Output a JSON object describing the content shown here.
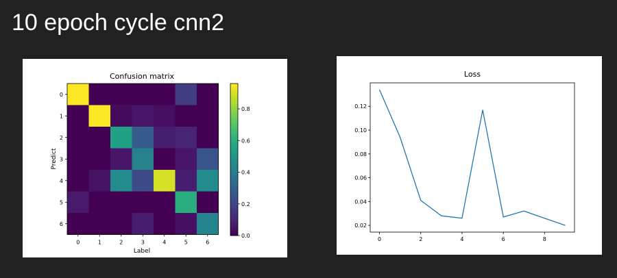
{
  "slide": {
    "title": "10 epoch cycle cnn2"
  },
  "chart_data": [
    {
      "type": "heatmap",
      "title": "Confusion matrix",
      "xlabel": "Label",
      "ylabel": "Predict",
      "x_categories": [
        "0",
        "1",
        "2",
        "3",
        "4",
        "5",
        "6"
      ],
      "y_categories": [
        "0",
        "1",
        "2",
        "3",
        "4",
        "5",
        "6"
      ],
      "values": [
        [
          0.96,
          0.0,
          0.0,
          0.0,
          0.0,
          0.17,
          0.0
        ],
        [
          0.0,
          0.96,
          0.03,
          0.06,
          0.04,
          0.0,
          0.0
        ],
        [
          0.0,
          0.0,
          0.55,
          0.28,
          0.08,
          0.1,
          0.0
        ],
        [
          0.0,
          0.0,
          0.06,
          0.42,
          0.0,
          0.06,
          0.25
        ],
        [
          0.0,
          0.05,
          0.46,
          0.22,
          0.9,
          0.08,
          0.46
        ],
        [
          0.07,
          0.0,
          0.0,
          0.0,
          0.0,
          0.6,
          0.0
        ],
        [
          0.0,
          0.0,
          0.0,
          0.08,
          0.0,
          0.04,
          0.43
        ]
      ],
      "colorbar": {
        "min": 0.0,
        "max": 0.96,
        "ticks": [
          "0.0",
          "0.2",
          "0.4",
          "0.6",
          "0.8"
        ],
        "colormap": "viridis"
      }
    },
    {
      "type": "line",
      "title": "Loss",
      "xlabel": "",
      "ylabel": "",
      "x": [
        0,
        1,
        2,
        3,
        4,
        5,
        6,
        7,
        8,
        9
      ],
      "y": [
        0.134,
        0.094,
        0.041,
        0.028,
        0.026,
        0.117,
        0.027,
        0.032,
        0.026,
        0.02
      ],
      "xlim": [
        -0.45,
        9.45
      ],
      "ylim": [
        0.0143,
        0.1397
      ],
      "x_ticks": [
        "0",
        "2",
        "4",
        "6",
        "8"
      ],
      "y_ticks": [
        "0.02",
        "0.04",
        "0.06",
        "0.08",
        "0.10",
        "0.12"
      ],
      "line_color": "#1f77b4"
    }
  ]
}
